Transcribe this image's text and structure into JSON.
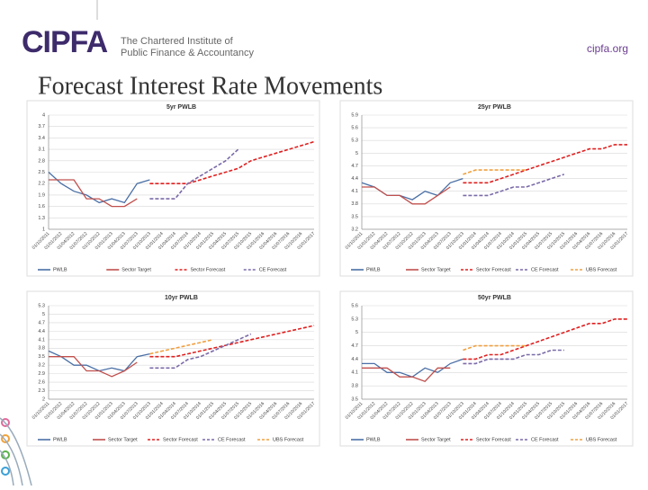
{
  "header": {
    "logo": "CIPFA",
    "tagline": [
      "The Chartered Institute of",
      "Public Finance & Accountancy"
    ],
    "site": "cipfa.org",
    "title": "Forecast Interest Rate Movements"
  },
  "chart_data": [
    {
      "type": "line",
      "title": "5yr PWLB",
      "categories": [
        "01/10/2011",
        "01/01/2012",
        "01/04/2012",
        "01/07/2012",
        "01/10/2012",
        "01/01/2013",
        "01/04/2013",
        "01/07/2013",
        "01/10/2013",
        "01/01/2014",
        "01/04/2014",
        "01/07/2014",
        "01/10/2014",
        "01/01/2015",
        "01/04/2015",
        "01/07/2015",
        "01/10/2015",
        "01/01/2016",
        "01/04/2016",
        "01/07/2016",
        "01/10/2016",
        "01/01/2017"
      ],
      "ylim": [
        1,
        4
      ],
      "yticks": [
        1,
        1.3,
        1.6,
        1.9,
        2.2,
        2.5,
        2.8,
        3.1,
        3.4,
        3.7,
        4
      ],
      "grid": true,
      "series": [
        {
          "name": "PWLB",
          "color": "#4a6fa5",
          "style": "solid",
          "values": [
            2.5,
            2.2,
            2.0,
            1.9,
            1.7,
            1.8,
            1.7,
            2.2,
            2.3,
            null,
            null,
            null,
            null,
            null,
            null,
            null,
            null,
            null,
            null,
            null,
            null,
            null
          ]
        },
        {
          "name": "Sector Target",
          "color": "#c0504d",
          "style": "solid",
          "values": [
            2.3,
            2.3,
            2.3,
            1.8,
            1.8,
            1.6,
            1.6,
            1.8,
            null,
            null,
            null,
            null,
            null,
            null,
            null,
            null,
            null,
            null,
            null,
            null,
            null,
            null
          ]
        },
        {
          "name": "Sector Forecast",
          "color": "#e02020",
          "style": "dashed",
          "values": [
            null,
            null,
            null,
            null,
            null,
            null,
            null,
            null,
            2.2,
            2.2,
            2.2,
            2.2,
            2.3,
            2.4,
            2.5,
            2.6,
            2.8,
            2.9,
            3.0,
            3.1,
            3.2,
            3.3
          ]
        },
        {
          "name": "CE Forecast",
          "color": "#7b6aa8",
          "style": "dashed",
          "values": [
            null,
            null,
            null,
            null,
            null,
            null,
            null,
            null,
            1.8,
            1.8,
            1.8,
            2.2,
            2.4,
            2.6,
            2.8,
            3.1,
            null,
            null,
            null,
            null,
            null,
            null
          ]
        }
      ]
    },
    {
      "type": "line",
      "title": "25yr PWLB",
      "categories": [
        "01/10/2011",
        "01/01/2012",
        "01/04/2012",
        "01/07/2012",
        "01/10/2012",
        "01/01/2013",
        "01/04/2013",
        "01/07/2013",
        "01/10/2013",
        "01/01/2014",
        "01/04/2014",
        "01/07/2014",
        "01/10/2014",
        "01/01/2015",
        "01/04/2015",
        "01/07/2015",
        "01/10/2015",
        "01/01/2016",
        "01/04/2016",
        "01/07/2016",
        "01/10/2016",
        "01/01/2017"
      ],
      "ylim": [
        3.2,
        5.9
      ],
      "yticks": [
        3.2,
        3.5,
        3.8,
        4.1,
        4.4,
        4.7,
        5,
        5.3,
        5.6,
        5.9
      ],
      "grid": true,
      "series": [
        {
          "name": "PWLB",
          "color": "#4a6fa5",
          "style": "solid",
          "values": [
            4.3,
            4.2,
            4.0,
            4.0,
            3.9,
            4.1,
            4.0,
            4.3,
            4.4,
            null,
            null,
            null,
            null,
            null,
            null,
            null,
            null,
            null,
            null,
            null,
            null,
            null
          ]
        },
        {
          "name": "Sector Target",
          "color": "#c0504d",
          "style": "solid",
          "values": [
            4.2,
            4.2,
            4.0,
            4.0,
            3.8,
            3.8,
            4.0,
            4.2,
            null,
            null,
            null,
            null,
            null,
            null,
            null,
            null,
            null,
            null,
            null,
            null,
            null,
            null
          ]
        },
        {
          "name": "Sector Forecast",
          "color": "#e02020",
          "style": "dashed",
          "values": [
            null,
            null,
            null,
            null,
            null,
            null,
            null,
            null,
            4.3,
            4.3,
            4.3,
            4.4,
            4.5,
            4.6,
            4.7,
            4.8,
            4.9,
            5.0,
            5.1,
            5.1,
            5.2,
            5.2
          ]
        },
        {
          "name": "CE Forecast",
          "color": "#7b6aa8",
          "style": "dashed",
          "values": [
            null,
            null,
            null,
            null,
            null,
            null,
            null,
            null,
            4.0,
            4.0,
            4.0,
            4.1,
            4.2,
            4.2,
            4.3,
            4.4,
            4.5,
            null,
            null,
            null,
            null,
            null
          ]
        },
        {
          "name": "UBS Forecast",
          "color": "#f0a040",
          "style": "dashed",
          "values": [
            null,
            null,
            null,
            null,
            null,
            null,
            null,
            null,
            4.5,
            4.6,
            4.6,
            4.6,
            4.6,
            4.6,
            null,
            null,
            null,
            null,
            null,
            null,
            null,
            null
          ]
        }
      ]
    },
    {
      "type": "line",
      "title": "10yr PWLB",
      "categories": [
        "01/10/2011",
        "01/01/2012",
        "01/04/2012",
        "01/07/2012",
        "01/10/2012",
        "01/01/2013",
        "01/04/2013",
        "01/07/2013",
        "01/10/2013",
        "01/01/2014",
        "01/04/2014",
        "01/07/2014",
        "01/10/2014",
        "01/01/2015",
        "01/04/2015",
        "01/07/2015",
        "01/10/2015",
        "01/01/2016",
        "01/04/2016",
        "01/07/2016",
        "01/10/2016",
        "01/01/2017"
      ],
      "ylim": [
        2,
        5.3
      ],
      "yticks": [
        2,
        2.3,
        2.6,
        2.9,
        3.2,
        3.5,
        3.8,
        4.1,
        4.4,
        4.7,
        5,
        5.3
      ],
      "grid": true,
      "series": [
        {
          "name": "PWLB",
          "color": "#4a6fa5",
          "style": "solid",
          "values": [
            3.7,
            3.5,
            3.2,
            3.2,
            3.0,
            3.1,
            3.0,
            3.5,
            3.6,
            null,
            null,
            null,
            null,
            null,
            null,
            null,
            null,
            null,
            null,
            null,
            null,
            null
          ]
        },
        {
          "name": "Sector Target",
          "color": "#c0504d",
          "style": "solid",
          "values": [
            3.5,
            3.5,
            3.5,
            3.0,
            3.0,
            2.8,
            3.0,
            3.3,
            null,
            null,
            null,
            null,
            null,
            null,
            null,
            null,
            null,
            null,
            null,
            null,
            null,
            null
          ]
        },
        {
          "name": "Sector Forecast",
          "color": "#e02020",
          "style": "dashed",
          "values": [
            null,
            null,
            null,
            null,
            null,
            null,
            null,
            null,
            3.5,
            3.5,
            3.5,
            3.6,
            3.7,
            3.8,
            3.9,
            4.0,
            4.1,
            4.2,
            4.3,
            4.4,
            4.5,
            4.6
          ]
        },
        {
          "name": "CE Forecast",
          "color": "#7b6aa8",
          "style": "dashed",
          "values": [
            null,
            null,
            null,
            null,
            null,
            null,
            null,
            null,
            3.1,
            3.1,
            3.1,
            3.4,
            3.5,
            3.7,
            3.9,
            4.1,
            4.3,
            null,
            null,
            null,
            null,
            null
          ]
        },
        {
          "name": "UBS Forecast",
          "color": "#f0a040",
          "style": "dashed",
          "values": [
            null,
            null,
            null,
            null,
            null,
            null,
            null,
            null,
            3.6,
            3.7,
            3.8,
            3.9,
            4.0,
            4.1,
            null,
            null,
            null,
            null,
            null,
            null,
            null,
            null
          ]
        }
      ]
    },
    {
      "type": "line",
      "title": "50yr PWLB",
      "categories": [
        "01/10/2011",
        "01/01/2012",
        "01/04/2012",
        "01/07/2012",
        "01/10/2012",
        "01/01/2013",
        "01/04/2013",
        "01/07/2013",
        "01/10/2013",
        "01/01/2014",
        "01/04/2014",
        "01/07/2014",
        "01/10/2014",
        "01/01/2015",
        "01/04/2015",
        "01/07/2015",
        "01/10/2015",
        "01/01/2016",
        "01/04/2016",
        "01/07/2016",
        "01/10/2016",
        "01/01/2017"
      ],
      "ylim": [
        3.5,
        5.6
      ],
      "yticks": [
        3.5,
        3.8,
        4.1,
        4.4,
        4.7,
        5,
        5.3,
        5.6
      ],
      "grid": true,
      "series": [
        {
          "name": "PWLB",
          "color": "#4a6fa5",
          "style": "solid",
          "values": [
            4.3,
            4.3,
            4.1,
            4.1,
            4.0,
            4.2,
            4.1,
            4.3,
            4.4,
            null,
            null,
            null,
            null,
            null,
            null,
            null,
            null,
            null,
            null,
            null,
            null,
            null
          ]
        },
        {
          "name": "Sector Target",
          "color": "#c0504d",
          "style": "solid",
          "values": [
            4.2,
            4.2,
            4.2,
            4.0,
            4.0,
            3.9,
            4.2,
            4.2,
            null,
            null,
            null,
            null,
            null,
            null,
            null,
            null,
            null,
            null,
            null,
            null,
            null,
            null
          ]
        },
        {
          "name": "Sector Forecast",
          "color": "#e02020",
          "style": "dashed",
          "values": [
            null,
            null,
            null,
            null,
            null,
            null,
            null,
            null,
            4.4,
            4.4,
            4.5,
            4.5,
            4.6,
            4.7,
            4.8,
            4.9,
            5.0,
            5.1,
            5.2,
            5.2,
            5.3,
            5.3
          ]
        },
        {
          "name": "CE Forecast",
          "color": "#7b6aa8",
          "style": "dashed",
          "values": [
            null,
            null,
            null,
            null,
            null,
            null,
            null,
            null,
            4.3,
            4.3,
            4.4,
            4.4,
            4.4,
            4.5,
            4.5,
            4.6,
            4.6,
            null,
            null,
            null,
            null,
            null
          ]
        },
        {
          "name": "UBS Forecast",
          "color": "#f0a040",
          "style": "dashed",
          "values": [
            null,
            null,
            null,
            null,
            null,
            null,
            null,
            null,
            4.6,
            4.7,
            4.7,
            4.7,
            4.7,
            4.7,
            null,
            null,
            null,
            null,
            null,
            null,
            null,
            null
          ]
        }
      ]
    }
  ]
}
